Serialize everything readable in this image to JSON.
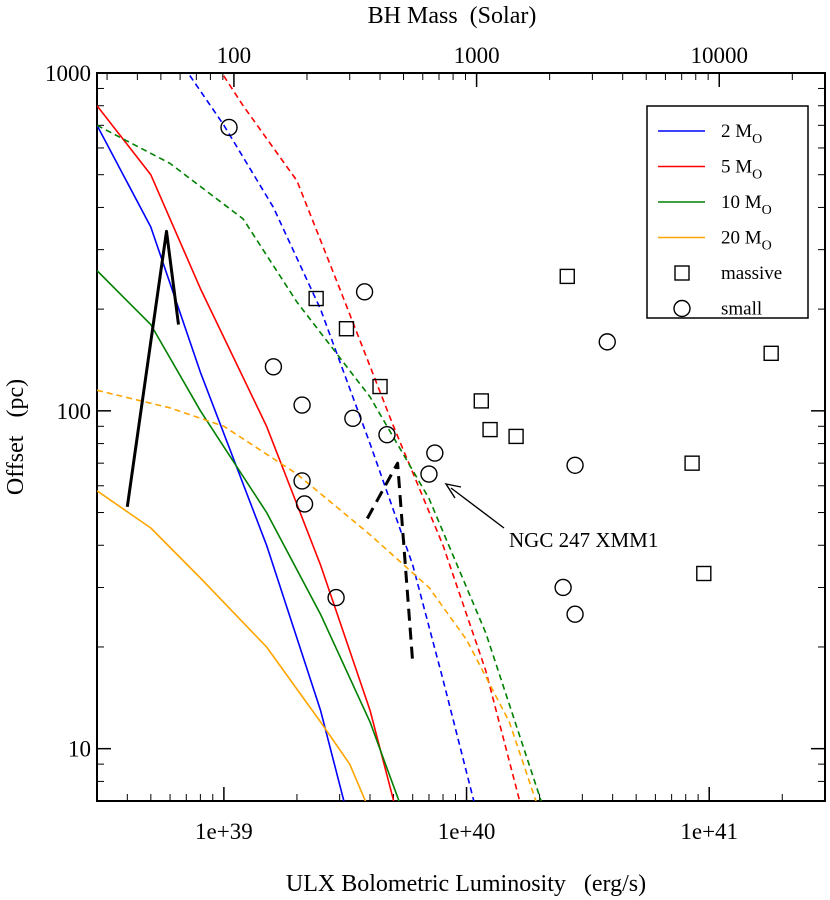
{
  "chart_data": {
    "type": "scatter",
    "xlabel": "ULX Bolometric Luminosity   (erg/s)",
    "ylabel": "Offset   (pc)",
    "top_xlabel": "BH Mass  (Solar)",
    "xscale": "log",
    "yscale": "log",
    "xlim": [
      3e+38,
      3e+41
    ],
    "ylim": [
      7,
      1000
    ],
    "x_ticks": [
      {
        "value": 1e+39,
        "label": "1e+39"
      },
      {
        "value": 1e+40,
        "label": "1e+40"
      },
      {
        "value": 1e+41,
        "label": "1e+41"
      }
    ],
    "y_ticks": [
      {
        "value": 10,
        "label": "10"
      },
      {
        "value": 100,
        "label": "100"
      },
      {
        "value": 1000,
        "label": "1000"
      }
    ],
    "top_ticks": [
      {
        "value": 1.1e+39,
        "label": "100"
      },
      {
        "value": 1.1e+40,
        "label": "1000"
      },
      {
        "value": 1.1e+41,
        "label": "10000"
      }
    ],
    "legend_position": "top-right",
    "legend": [
      {
        "label": "2 M",
        "sub": "O",
        "color": "#0000ff",
        "kind": "line"
      },
      {
        "label": "5 M",
        "sub": "O",
        "color": "#ff0000",
        "kind": "line"
      },
      {
        "label": "10 M",
        "sub": "O",
        "color": "#008000",
        "kind": "line"
      },
      {
        "label": "20 M",
        "sub": "O",
        "color": "#ffa500",
        "kind": "line"
      },
      {
        "label": "massive",
        "sub": "",
        "color": "#000000",
        "kind": "square"
      },
      {
        "label": "small",
        "sub": "",
        "color": "#000000",
        "kind": "circle"
      }
    ],
    "series": [
      {
        "name": "2 Msun solid",
        "color": "#0000ff",
        "style": "solid",
        "points": [
          [
            3e+38,
            700
          ],
          [
            5e+38,
            350
          ],
          [
            8e+38,
            130
          ],
          [
            1.5e+39,
            40
          ],
          [
            2.5e+39,
            13
          ],
          [
            3.3e+39,
            6
          ]
        ]
      },
      {
        "name": "2 Msun dashed",
        "color": "#0000ff",
        "style": "dashed",
        "points": [
          [
            6.5e+38,
            1100
          ],
          [
            1e+39,
            700
          ],
          [
            1.6e+39,
            400
          ],
          [
            2.5e+39,
            200
          ],
          [
            4e+39,
            80
          ],
          [
            6e+39,
            35
          ],
          [
            8e+39,
            16
          ],
          [
            1.1e+40,
            6.5
          ]
        ]
      },
      {
        "name": "5 Msun solid",
        "color": "#ff0000",
        "style": "solid",
        "points": [
          [
            3e+38,
            800
          ],
          [
            5e+38,
            500
          ],
          [
            8e+38,
            230
          ],
          [
            1.5e+39,
            90
          ],
          [
            2.5e+39,
            35
          ],
          [
            4e+39,
            13
          ],
          [
            5.3e+39,
            6
          ]
        ]
      },
      {
        "name": "5 Msun dashed",
        "color": "#ff0000",
        "style": "dashed",
        "points": [
          [
            9e+38,
            1100
          ],
          [
            1.2e+39,
            800
          ],
          [
            2e+39,
            480
          ],
          [
            3e+39,
            230
          ],
          [
            5e+39,
            90
          ],
          [
            8e+39,
            40
          ],
          [
            1.2e+40,
            17
          ],
          [
            1.7e+40,
            6.5
          ]
        ]
      },
      {
        "name": "10 Msun solid",
        "color": "#008000",
        "style": "solid",
        "points": [
          [
            3e+38,
            260
          ],
          [
            5e+38,
            180
          ],
          [
            8e+38,
            100
          ],
          [
            1.5e+39,
            50
          ],
          [
            2.5e+39,
            25
          ],
          [
            4e+39,
            12
          ],
          [
            5.7e+39,
            6
          ]
        ]
      },
      {
        "name": "10 Msun dashed",
        "color": "#008000",
        "style": "dashed",
        "points": [
          [
            3e+38,
            700
          ],
          [
            6e+38,
            540
          ],
          [
            1.2e+39,
            370
          ],
          [
            2e+39,
            210
          ],
          [
            4e+39,
            110
          ],
          [
            7e+39,
            55
          ],
          [
            1.2e+40,
            22
          ],
          [
            2.1e+40,
            6.5
          ]
        ]
      },
      {
        "name": "20 Msun solid",
        "color": "#ffa500",
        "style": "solid",
        "points": [
          [
            3e+38,
            58
          ],
          [
            5e+38,
            45
          ],
          [
            8e+38,
            32
          ],
          [
            1.5e+39,
            20
          ],
          [
            2.5e+39,
            12
          ],
          [
            3.3e+39,
            9
          ],
          [
            4e+39,
            6.5
          ]
        ]
      },
      {
        "name": "20 Msun dashed",
        "color": "#ffa500",
        "style": "dashed",
        "points": [
          [
            3e+38,
            115
          ],
          [
            6e+38,
            102
          ],
          [
            1e+39,
            90
          ],
          [
            2e+39,
            65
          ],
          [
            4e+39,
            43
          ],
          [
            7e+39,
            30
          ],
          [
            1e+40,
            21
          ],
          [
            1.5e+40,
            12
          ],
          [
            2e+40,
            6.5
          ]
        ]
      },
      {
        "name": "black solid track",
        "color": "#000000",
        "style": "solid-thick",
        "points": [
          [
            4e+38,
            52
          ],
          [
            5.8e+38,
            340
          ],
          [
            6.5e+38,
            180
          ]
        ]
      },
      {
        "name": "black dashed track",
        "color": "#000000",
        "style": "dashed-thick",
        "points": [
          [
            3.9e+39,
            48
          ],
          [
            5.2e+39,
            70
          ],
          [
            6e+39,
            18
          ]
        ]
      }
    ],
    "markers": {
      "massive": [
        [
          2.4e+39,
          215
        ],
        [
          3.2e+39,
          175
        ],
        [
          4.4e+39,
          118
        ],
        [
          1.15e+40,
          107
        ],
        [
          1.25e+40,
          88
        ],
        [
          1.6e+40,
          84
        ],
        [
          2.6e+40,
          250
        ],
        [
          8.5e+40,
          70
        ],
        [
          9.5e+40,
          33
        ],
        [
          1.8e+41,
          148
        ]
      ],
      "small": [
        [
          1.05e+39,
          690
        ],
        [
          1.6e+39,
          135
        ],
        [
          2.1e+39,
          104
        ],
        [
          2.1e+39,
          62
        ],
        [
          2.15e+39,
          53
        ],
        [
          2.9e+39,
          28
        ],
        [
          3.4e+39,
          95
        ],
        [
          3.8e+39,
          225
        ],
        [
          4.7e+39,
          85
        ],
        [
          7e+39,
          65
        ],
        [
          7.4e+39,
          75
        ],
        [
          2.5e+40,
          30
        ],
        [
          2.8e+40,
          69
        ],
        [
          2.8e+40,
          25
        ],
        [
          3.8e+40,
          160
        ]
      ]
    },
    "annotation": {
      "text": "NGC 247 XMM1",
      "target": [
        7.2e+39,
        64
      ]
    }
  }
}
